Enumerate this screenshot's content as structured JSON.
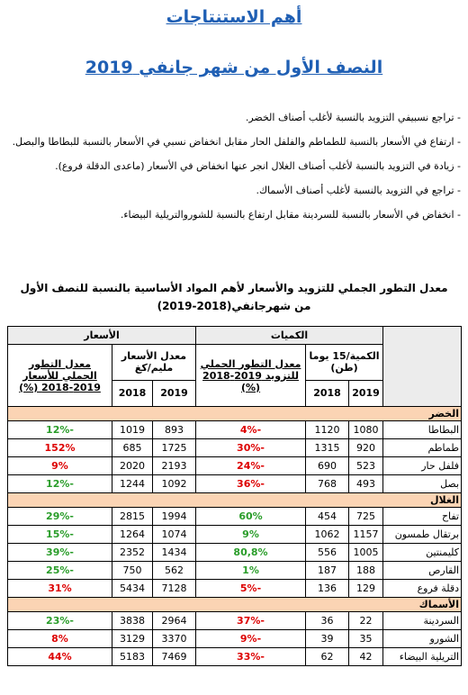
{
  "header": {
    "title": "أهم الاستنتاجات",
    "subtitle": "النصف الأول من شهر جانفي 2019"
  },
  "bullets": [
    "- تراجع نسبيفي التزويد بالنسبة لأغلب أصناف الخضر.",
    "- ارتفاع في الأسعار بالنسبة للطماطم والفلفل الحار مقابل انخفاض نسبي في الأسعار بالنسبة للبطاطا والبصل.",
    "- زيادة في التزويد بالنسبة لأغلب أصناف الغلال انجر عنها انخفاض في الأسعار (ماعدى الدقلة فروع).",
    "- تراجع في التزويد بالنسبة لأغلب أصناف الأسماك.",
    "- انخفاض في الأسعار بالنسبة للسردينة مقابل ارتفاع بالنسبة للشوروالتريلية البيضاء."
  ],
  "table": {
    "title": "معدل التطور الجملي للتزويد والأسعار لأهم المواد الأساسية بالنسبة للنصف الأول من شهرجانفي(2018-2019)",
    "headers": {
      "quantities": "الكميات",
      "prices": "الأسعار",
      "qty_label": "الكمية/15 يوما (طن)",
      "qty_evo": "معدل التطور الجملي للتزويد 2019-2018 (%)",
      "price_label": "معدل الأسعار مليم/كغ",
      "price_evo": "معدل التطور الجملي للأسعار 2019-2018 (%)",
      "year_a": "2019",
      "year_b": "2018"
    },
    "sections": [
      {
        "name": "الخضر",
        "rows": [
          [
            "البطاطا",
            "1080",
            "1120",
            "-4%",
            "893",
            "1019",
            "-12%"
          ],
          [
            "طماطم",
            "920",
            "1315",
            "-30%",
            "1725",
            "685",
            "152%"
          ],
          [
            "فلفل حار",
            "523",
            "690",
            "-24%",
            "2193",
            "2020",
            "9%"
          ],
          [
            "بصل",
            "493",
            "768",
            "-36%",
            "1092",
            "1244",
            "-12%"
          ]
        ]
      },
      {
        "name": "الغلال",
        "rows": [
          [
            "تفاح",
            "725",
            "454",
            "60%",
            "1994",
            "2815",
            "-29%"
          ],
          [
            "برتقال طمسون",
            "1157",
            "1062",
            "9%",
            "1074",
            "1264",
            "-15%"
          ],
          [
            "كليمنتين",
            "1005",
            "556",
            "80,8%",
            "1434",
            "2352",
            "-39%"
          ],
          [
            "القارص",
            "188",
            "187",
            "1%",
            "562",
            "750",
            "-25%"
          ],
          [
            "دقلة فروع",
            "129",
            "136",
            "-5%",
            "7128",
            "5434",
            "31%"
          ]
        ]
      },
      {
        "name": "الأسماك",
        "rows": [
          [
            "السردينة",
            "22",
            "36",
            "-37%",
            "2964",
            "3838",
            "-23%"
          ],
          [
            "الشورو",
            "35",
            "39",
            "-9%",
            "3370",
            "3129",
            "8%"
          ],
          [
            "التريلية البيضاء",
            "42",
            "62",
            "-33%",
            "7469",
            "5183",
            "44%"
          ]
        ]
      }
    ]
  }
}
